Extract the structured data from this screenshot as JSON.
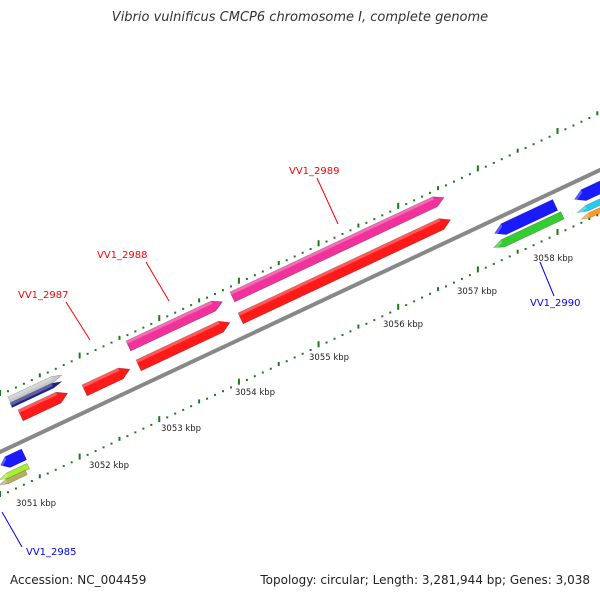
{
  "title": "Vibrio vulnificus CMCP6 chromosome I, complete genome",
  "accession_text": "Accession: NC_004459",
  "summary_text": "Topology: circular; Length: 3,281,944 bp; Genes: 3,038",
  "scale_labels": [
    "3051 kbp",
    "3052 kbp",
    "3053 kbp",
    "3054 kbp",
    "3055 kbp",
    "3056 kbp",
    "3057 kbp",
    "3058 kbp"
  ],
  "gene_labels": [
    {
      "text": "VV1_2985",
      "color": "#0000ff"
    },
    {
      "text": "VV1_2987",
      "color": "#ff0000"
    },
    {
      "text": "VV1_2988",
      "color": "#ff0000"
    },
    {
      "text": "VV1_2989",
      "color": "#ff0000"
    },
    {
      "text": "VV1_2990",
      "color": "#0000ff"
    }
  ],
  "colors": {
    "backbone": "#888888",
    "tick": "#1a7a1a",
    "forward_red": "#ff1a1a",
    "forward_pink": "#f0329a",
    "reverse_blue": "#1a1aff",
    "green": "#33cc33",
    "cyan": "#22ccee",
    "orange": "#ff9922",
    "navy": "#1f1f8a",
    "lightgray": "#c8c8c8",
    "olive": "#b0b060",
    "lime": "#aaee33"
  }
}
